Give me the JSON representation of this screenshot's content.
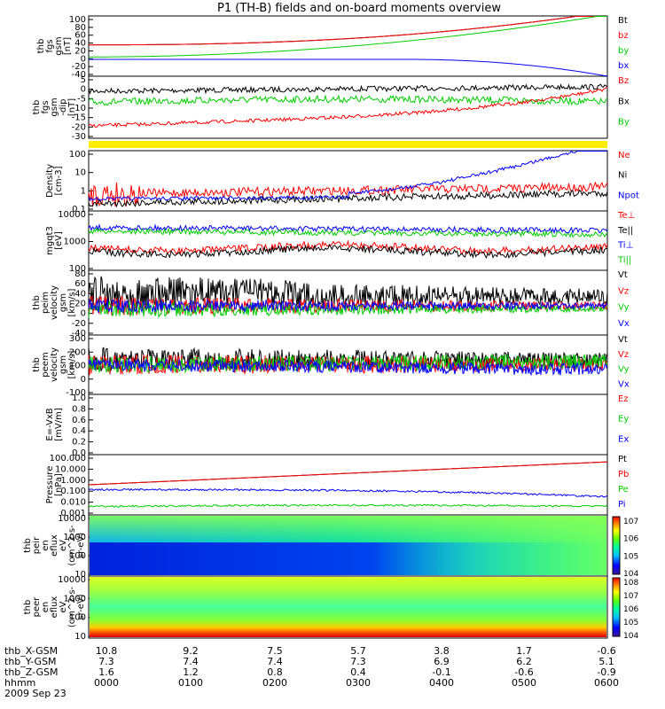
{
  "title": "P1 (TH-B) fields and on-board moments overview",
  "date_label": "2009 Sep 23",
  "orbit_labels": [
    "thb_X-GSM",
    "thb_Y-GSM",
    "thb_Z-GSM",
    "hhmm"
  ],
  "colors": {
    "black": "#000000",
    "red": "#ff0000",
    "green": "#00ff00",
    "blue": "#0000ff",
    "flag": "#ffee00"
  },
  "chart_data": [
    {
      "type": "line",
      "ylabel": [
        "thb",
        "fgs",
        "gsm",
        "[nT]"
      ],
      "ticks": [
        "100",
        "80",
        "60",
        "40",
        "20",
        "0",
        "-20",
        "-40"
      ],
      "legend": [
        {
          "name": "Bt",
          "color": "#000000"
        },
        {
          "name": "bz",
          "color": "#ff0000"
        },
        {
          "name": "by",
          "color": "#00cc00"
        },
        {
          "name": "bx",
          "color": "#0000ff"
        }
      ],
      "ylim": [
        -40,
        100
      ]
    },
    {
      "type": "line",
      "ylabel": [
        "thb",
        "fgs",
        "gsm",
        "-dip",
        "[nT]"
      ],
      "ticks": [
        "5",
        "0",
        "-5",
        "-10",
        "-15",
        "-20",
        "-30"
      ],
      "legend": [
        {
          "name": "Bz",
          "color": "#ff0000"
        },
        {
          "name": "Bx",
          "color": "#000000"
        },
        {
          "name": "By",
          "color": "#00cc00"
        }
      ],
      "ylim": [
        -30,
        5
      ]
    },
    {
      "type": "line",
      "ylabel": [
        "Density",
        "[cm-3]"
      ],
      "ticks": [
        "100",
        "10",
        "1",
        "0.1"
      ],
      "legend": [
        {
          "name": "Ne",
          "color": "#ff0000"
        },
        {
          "name": "Ni",
          "color": "#000000"
        },
        {
          "name": "Npot",
          "color": "#0000ff"
        }
      ],
      "ylim": [
        0.1,
        100
      ],
      "log": true
    },
    {
      "type": "line",
      "ylabel": [
        "mgqt3",
        "[eV]"
      ],
      "ticks": [
        "10000",
        "1000",
        "100"
      ],
      "legend": [
        {
          "name": "Te⊥",
          "color": "#ff0000"
        },
        {
          "name": "Te||",
          "color": "#000000"
        },
        {
          "name": "Ti⊥",
          "color": "#0000ff"
        },
        {
          "name": "Ti||",
          "color": "#00cc00"
        }
      ],
      "ylim": [
        30,
        10000
      ],
      "log": true
    },
    {
      "type": "line",
      "ylabel": [
        "thb",
        "peim",
        "velocity",
        "gsm",
        "[km/s]"
      ],
      "ticks": [
        "80",
        "60",
        "40",
        "20",
        "0",
        "-20",
        "-40"
      ],
      "legend": [
        {
          "name": "Vt",
          "color": "#000000"
        },
        {
          "name": "Vz",
          "color": "#ff0000"
        },
        {
          "name": "Vy",
          "color": "#00cc00"
        },
        {
          "name": "Vx",
          "color": "#0000ff"
        }
      ],
      "ylim": [
        -40,
        80
      ]
    },
    {
      "type": "line",
      "ylabel": [
        "thb",
        "peem",
        "velocity",
        "gsm",
        "[km/s]"
      ],
      "ticks": [
        "300",
        "200",
        "100",
        "0",
        "-100"
      ],
      "legend": [
        {
          "name": "Vt",
          "color": "#000000"
        },
        {
          "name": "Vz",
          "color": "#ff0000"
        },
        {
          "name": "Vy",
          "color": "#00cc00"
        },
        {
          "name": "Vx",
          "color": "#0000ff"
        }
      ],
      "ylim": [
        -100,
        300
      ]
    },
    {
      "type": "line",
      "ylabel": [
        "E=-VxB",
        "[mV/m]"
      ],
      "ticks": [
        "1.0",
        "0.8",
        "0.6",
        "0.4",
        "0.2",
        "0.0"
      ],
      "legend": [
        {
          "name": "Ez",
          "color": "#ff0000"
        },
        {
          "name": "Ey",
          "color": "#00cc00"
        },
        {
          "name": "Ex",
          "color": "#0000ff"
        }
      ],
      "ylim": [
        0,
        1
      ]
    },
    {
      "type": "line",
      "ylabel": [
        "Pressure",
        "[nPa]"
      ],
      "ticks": [
        "100.000",
        "10.000",
        "1.000",
        "0.100",
        "0.010",
        "0.001"
      ],
      "legend": [
        {
          "name": "Pt",
          "color": "#000000"
        },
        {
          "name": "Pb",
          "color": "#ff0000"
        },
        {
          "name": "Pe",
          "color": "#00cc00"
        },
        {
          "name": "Pi",
          "color": "#0000ff"
        }
      ],
      "ylim": [
        0.001,
        100
      ],
      "log": true
    },
    {
      "type": "heatmap",
      "ylabel": [
        "thb",
        "peir",
        "en",
        "eflux",
        "eV",
        "(cm^2-s-",
        "sr-eV)"
      ],
      "ticks": [
        "10000",
        "1000",
        "100",
        "10"
      ],
      "colorbar_ticks": [
        "10^7",
        "10^6",
        "10^5",
        "10^4"
      ],
      "ylim": [
        5,
        25000
      ],
      "log": true
    },
    {
      "type": "heatmap",
      "ylabel": [
        "thb",
        "peer",
        "en",
        "eflux",
        "eV",
        "(cm^2-s-",
        "sr-eV)"
      ],
      "ticks": [
        "10000",
        "1000",
        "100",
        "10"
      ],
      "colorbar_ticks": [
        "10^8",
        "10^7",
        "10^6",
        "10^5",
        "10^4"
      ],
      "ylim": [
        5,
        25000
      ],
      "log": true
    }
  ],
  "time_axis": {
    "hhmm": [
      "0000",
      "0100",
      "0200",
      "0300",
      "0400",
      "0500",
      "0600"
    ],
    "x_gsm": [
      "10.8",
      "9.2",
      "7.5",
      "5.7",
      "3.8",
      "1.7",
      "-0.6"
    ],
    "y_gsm": [
      "7.3",
      "7.4",
      "7.4",
      "7.3",
      "6.9",
      "6.2",
      "5.1"
    ],
    "z_gsm": [
      "1.6",
      "1.2",
      "0.8",
      "0.4",
      "-0.1",
      "-0.6",
      "-0.9"
    ]
  }
}
